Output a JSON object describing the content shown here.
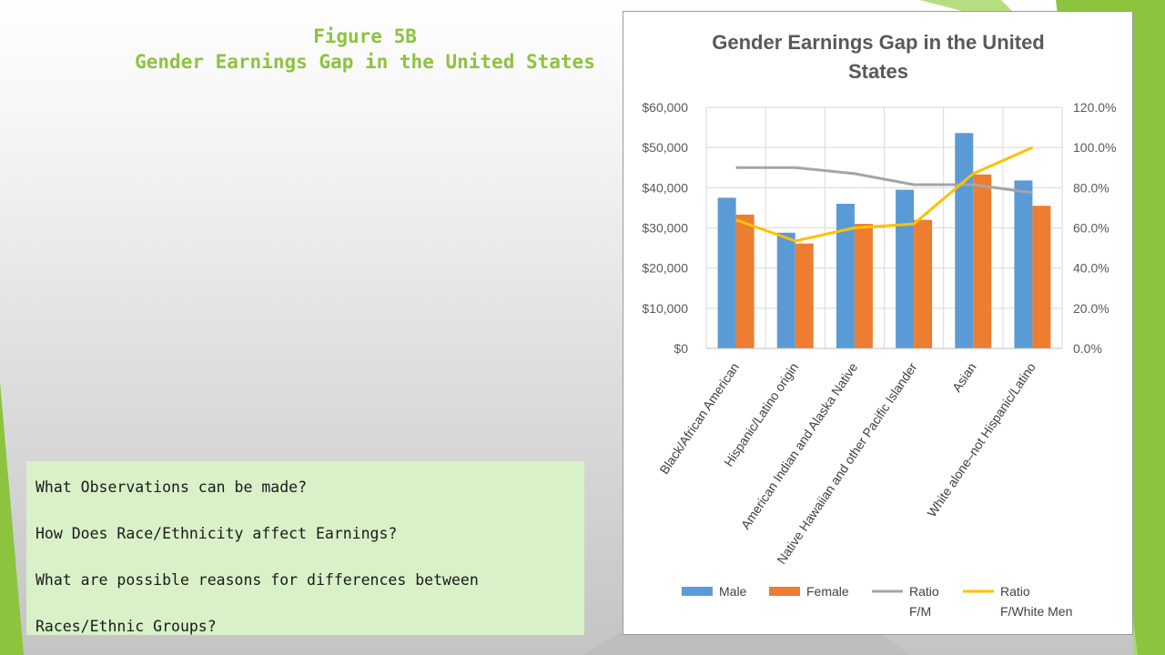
{
  "slide": {
    "title_line1": "Figure 5B",
    "title_line2": "Gender Earnings Gap in the United States",
    "questions": [
      "What Observations can be made?",
      "How Does Race/Ethnicity affect Earnings?",
      "What are possible reasons for differences between",
      "Races/Ethnic Groups?"
    ]
  },
  "colors": {
    "title_green": "#8cc43e",
    "male": "#5b9bd5",
    "female": "#ed7d31",
    "ratio_fm": "#a5a5a5",
    "ratio_fwm": "#ffc000"
  },
  "chart_data": {
    "type": "bar",
    "title_lines": [
      "Gender Earnings Gap in the United",
      "States"
    ],
    "categories": [
      "Black/African American",
      "Hispanic/Latino origin",
      "American Indian and Alaska Native",
      "Native Hawaiian and other Pacific Islander",
      "Asian",
      "White alone–not Hispanic/Latino"
    ],
    "y_left": {
      "ylim": [
        0,
        60000
      ],
      "ticks": [
        "$0",
        "$10,000",
        "$20,000",
        "$30,000",
        "$40,000",
        "$50,000",
        "$60,000"
      ]
    },
    "y_right": {
      "ylim": [
        0,
        120
      ],
      "ticks": [
        "0.0%",
        "20.0%",
        "40.0%",
        "60.0%",
        "80.0%",
        "100.0%",
        "120.0%"
      ]
    },
    "series": [
      {
        "name": "Male",
        "kind": "bar",
        "axis": "left",
        "color": "#5b9bd5",
        "values": [
          37500,
          28800,
          36000,
          39500,
          53600,
          41800
        ]
      },
      {
        "name": "Female",
        "kind": "bar",
        "axis": "left",
        "color": "#ed7d31",
        "values": [
          33300,
          26100,
          31000,
          32000,
          43300,
          35500
        ]
      },
      {
        "name": "Ratio F/M",
        "kind": "line",
        "axis": "right",
        "color": "#a5a5a5",
        "values": [
          90,
          90,
          87,
          81.5,
          81.5,
          77.5
        ]
      },
      {
        "name": "Ratio F/White Men",
        "kind": "line",
        "axis": "right",
        "color": "#ffc000",
        "values": [
          64,
          53.5,
          60,
          62,
          87,
          100
        ]
      }
    ],
    "legend": {
      "position": "bottom",
      "items": [
        {
          "line1": "Male",
          "line2": "",
          "kind": "bar",
          "color": "#5b9bd5"
        },
        {
          "line1": "Female",
          "line2": "",
          "kind": "bar",
          "color": "#ed7d31"
        },
        {
          "line1": "Ratio",
          "line2": "F/M",
          "kind": "line",
          "color": "#a5a5a5"
        },
        {
          "line1": "Ratio",
          "line2": "F/White Men",
          "kind": "line",
          "color": "#ffc000"
        }
      ]
    },
    "grid": true
  }
}
